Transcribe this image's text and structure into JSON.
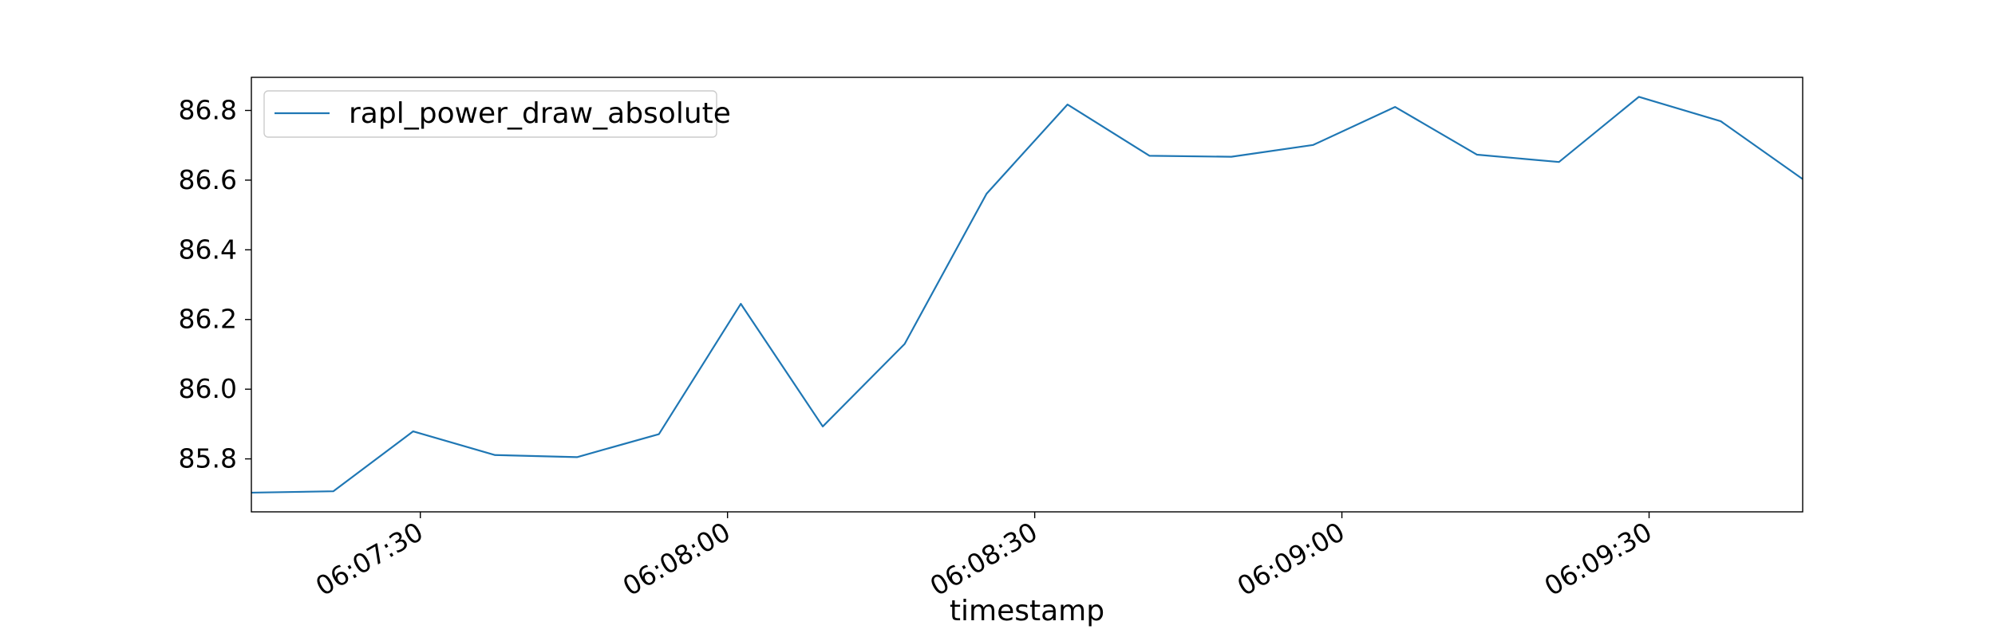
{
  "colors": {
    "series": "#1f77b4",
    "axes": "#000000",
    "legend_border": "#cccccc",
    "background": "#ffffff"
  },
  "chart_data": {
    "type": "line",
    "title": "",
    "xlabel": "timestamp",
    "ylabel": "",
    "grid": false,
    "legend_position": "top-left",
    "x_ticks": [
      "06:07:30",
      "06:08:00",
      "06:08:30",
      "06:09:00",
      "06:09:30"
    ],
    "x_tick_values": [
      "06:07:30",
      "06:08:00",
      "06:08:30",
      "06:09:00",
      "06:09:30"
    ],
    "xlim": [
      "06:07:13.5",
      "06:09:45"
    ],
    "y_ticks": [
      "85.8",
      "86.0",
      "86.2",
      "86.4",
      "86.6",
      "86.8"
    ],
    "y_tick_values": [
      85.8,
      86.0,
      86.2,
      86.4,
      86.6,
      86.8
    ],
    "ylim": [
      85.648,
      86.895
    ],
    "series": [
      {
        "name": "rapl_power_draw_absolute",
        "x": [
          "06:07:13.5",
          "06:07:21.5",
          "06:07:29.3",
          "06:07:37.3",
          "06:07:45.3",
          "06:07:53.3",
          "06:08:01.3",
          "06:08:09.3",
          "06:08:17.3",
          "06:08:25.3",
          "06:08:33.2",
          "06:08:41.2",
          "06:08:49.2",
          "06:08:57.2",
          "06:09:05.2",
          "06:09:13.2",
          "06:09:21.2",
          "06:09:29",
          "06:09:37",
          "06:09:45"
        ],
        "y": [
          85.703,
          85.707,
          85.879,
          85.811,
          85.805,
          85.871,
          86.245,
          85.893,
          86.13,
          86.561,
          86.817,
          86.67,
          86.667,
          86.701,
          86.81,
          86.673,
          86.652,
          86.839,
          86.769,
          86.603
        ]
      }
    ]
  }
}
